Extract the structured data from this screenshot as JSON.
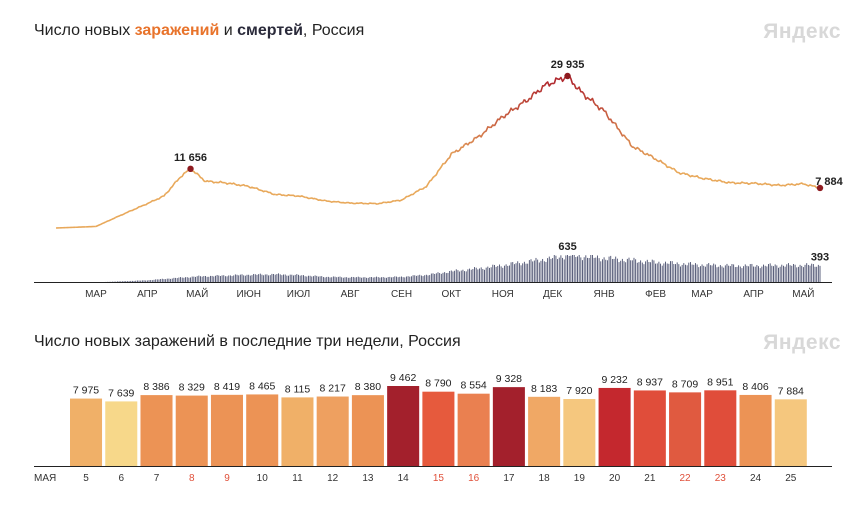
{
  "top_chart": {
    "title_parts": [
      "Число новых ",
      "заражений",
      " и ",
      "смертей",
      ", Россия"
    ],
    "watermark": "Яндекс"
  },
  "bottom_chart": {
    "title": "Число новых заражений в последние три недели, Россия",
    "watermark": "Яндекс"
  },
  "colors": {
    "infections_line_low": "#e8a85a",
    "infections_line_high": "#b0282e",
    "deaths_bar": "#4a4f6e",
    "peak_dot": "#8e1a1f",
    "weekend_label": "#e0503a"
  },
  "chart_data": [
    {
      "type": "line",
      "title": "Число новых заражений и смертей, Россия",
      "x_tick_labels": [
        "МАР",
        "АПР",
        "МАЙ",
        "ИЮН",
        "ИЮЛ",
        "АВГ",
        "СЕН",
        "ОКТ",
        "НОЯ",
        "ДЕК",
        "ЯНВ",
        "ФЕВ",
        "МАР",
        "АПР",
        "МАЙ"
      ],
      "x_range": [
        "2020-02-20",
        "2021-05-25"
      ],
      "series": [
        {
          "name": "заражений",
          "x": [
            "2020-02-20",
            "2020-03-15",
            "2020-04-01",
            "2020-04-15",
            "2020-04-25",
            "2020-05-05",
            "2020-05-11",
            "2020-05-20",
            "2020-06-01",
            "2020-06-15",
            "2020-07-01",
            "2020-07-15",
            "2020-08-01",
            "2020-08-15",
            "2020-09-01",
            "2020-09-15",
            "2020-09-30",
            "2020-10-15",
            "2020-11-01",
            "2020-11-15",
            "2020-12-01",
            "2020-12-10",
            "2020-12-24",
            "2021-01-01",
            "2021-01-15",
            "2021-02-01",
            "2021-02-15",
            "2021-03-01",
            "2021-03-15",
            "2021-04-01",
            "2021-04-15",
            "2021-05-01",
            "2021-05-15",
            "2021-05-25"
          ],
          "values": [
            0,
            300,
            2800,
            4800,
            6300,
            10100,
            11656,
            9200,
            8900,
            8200,
            6600,
            6300,
            5300,
            4900,
            4800,
            5500,
            8200,
            14500,
            18100,
            21900,
            25500,
            28000,
            29935,
            26800,
            23000,
            16100,
            13600,
            10900,
            9800,
            8900,
            8800,
            8400,
            8700,
            7884
          ],
          "annotations": [
            {
              "date": "2020-05-11",
              "label": "11 656"
            },
            {
              "date": "2020-12-24",
              "label": "29 935"
            },
            {
              "date": "2021-05-25",
              "label": "7 884"
            }
          ]
        },
        {
          "name": "смертей",
          "type": "bar",
          "x": [
            "2020-03-20",
            "2020-04-15",
            "2020-05-01",
            "2020-05-15",
            "2020-06-01",
            "2020-06-15",
            "2020-07-01",
            "2020-07-15",
            "2020-08-01",
            "2020-08-15",
            "2020-09-01",
            "2020-09-15",
            "2020-10-01",
            "2020-10-15",
            "2020-11-01",
            "2020-11-15",
            "2020-12-01",
            "2020-12-15",
            "2020-12-24",
            "2021-01-15",
            "2021-02-01",
            "2021-02-15",
            "2021-03-01",
            "2021-03-15",
            "2021-04-01",
            "2021-04-15",
            "2021-05-01",
            "2021-05-25"
          ],
          "values": [
            0,
            40,
            90,
            130,
            150,
            170,
            180,
            160,
            120,
            110,
            110,
            120,
            170,
            250,
            320,
            390,
            480,
            560,
            635,
            560,
            510,
            460,
            430,
            400,
            380,
            380,
            390,
            393
          ],
          "annotations": [
            {
              "date": "2020-12-24",
              "label": "635"
            },
            {
              "date": "2021-05-25",
              "label": "393"
            }
          ]
        }
      ]
    },
    {
      "type": "bar",
      "title": "Число новых заражений в последние три недели, Россия",
      "month_label": "МАЯ",
      "categories": [
        "5",
        "6",
        "7",
        "8",
        "9",
        "10",
        "11",
        "12",
        "13",
        "14",
        "15",
        "16",
        "17",
        "18",
        "19",
        "20",
        "21",
        "22",
        "23",
        "24",
        "25"
      ],
      "values": [
        7975,
        7639,
        8386,
        8329,
        8419,
        8465,
        8115,
        8217,
        8380,
        9462,
        8790,
        8554,
        9328,
        8183,
        7920,
        9232,
        8937,
        8709,
        8951,
        8406,
        7884
      ],
      "value_labels": [
        "7 975",
        "7 639",
        "8 386",
        "8 329",
        "8 419",
        "8 465",
        "8 115",
        "8 217",
        "8 380",
        "9 462",
        "8 790",
        "8 554",
        "9 328",
        "8 183",
        "7 920",
        "9 232",
        "8 937",
        "8 709",
        "8 951",
        "8 406",
        "7 884"
      ],
      "weekend_categories": [
        "8",
        "9",
        "15",
        "16",
        "22",
        "23"
      ],
      "bar_colors": [
        "#f0b068",
        "#f7d88a",
        "#ec9355",
        "#ec9355",
        "#ec9355",
        "#ec9355",
        "#f0b068",
        "#eea060",
        "#ec9355",
        "#a3202c",
        "#e65a3d",
        "#ea8050",
        "#a3202c",
        "#f0a865",
        "#f5c77e",
        "#c4282e",
        "#e04d3a",
        "#e05a40",
        "#e04d3a",
        "#ec9355",
        "#f5c77e"
      ]
    }
  ]
}
